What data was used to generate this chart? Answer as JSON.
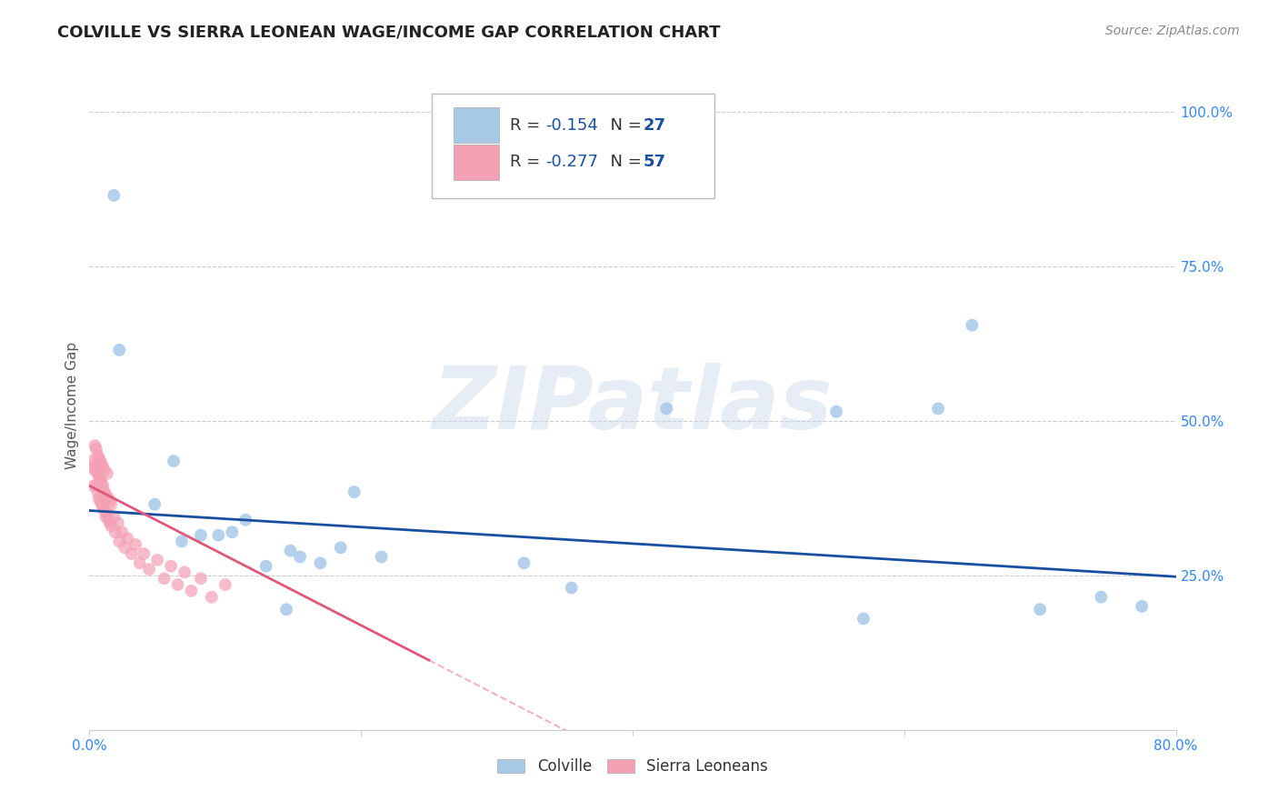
{
  "title": "COLVILLE VS SIERRA LEONEAN WAGE/INCOME GAP CORRELATION CHART",
  "source": "Source: ZipAtlas.com",
  "ylabel": "Wage/Income Gap",
  "xmin": 0.0,
  "xmax": 0.8,
  "ymin": 0.0,
  "ymax": 1.05,
  "yticks": [
    0.0,
    0.25,
    0.5,
    0.75,
    1.0
  ],
  "ytick_labels": [
    "",
    "25.0%",
    "50.0%",
    "75.0%",
    "100.0%"
  ],
  "xticks": [
    0.0,
    0.2,
    0.4,
    0.6,
    0.8
  ],
  "xtick_labels": [
    "0.0%",
    "",
    "",
    "",
    "80.0%"
  ],
  "colville_R": -0.154,
  "colville_N": 27,
  "sl_R": -0.277,
  "sl_N": 57,
  "colville_color": "#a8c8e8",
  "sl_color": "#f4a0b5",
  "colville_line_color": "#1a4fa0",
  "sl_line_color": "#e05878",
  "background_color": "#ffffff",
  "grid_color": "#cccccc",
  "colville_x": [
    0.018,
    0.022,
    0.048,
    0.062,
    0.068,
    0.082,
    0.095,
    0.105,
    0.115,
    0.13,
    0.145,
    0.148,
    0.155,
    0.17,
    0.185,
    0.195,
    0.215,
    0.32,
    0.355,
    0.425,
    0.55,
    0.57,
    0.625,
    0.65,
    0.7,
    0.745,
    0.775
  ],
  "colville_y": [
    0.865,
    0.615,
    0.365,
    0.435,
    0.305,
    0.315,
    0.315,
    0.32,
    0.34,
    0.265,
    0.195,
    0.29,
    0.28,
    0.27,
    0.295,
    0.385,
    0.28,
    0.27,
    0.23,
    0.52,
    0.515,
    0.18,
    0.52,
    0.655,
    0.195,
    0.215,
    0.2
  ],
  "sl_x": [
    0.002,
    0.003,
    0.003,
    0.004,
    0.004,
    0.005,
    0.005,
    0.005,
    0.006,
    0.006,
    0.006,
    0.007,
    0.007,
    0.007,
    0.008,
    0.008,
    0.008,
    0.009,
    0.009,
    0.009,
    0.01,
    0.01,
    0.01,
    0.011,
    0.011,
    0.011,
    0.012,
    0.012,
    0.013,
    0.013,
    0.014,
    0.014,
    0.015,
    0.015,
    0.016,
    0.016,
    0.018,
    0.019,
    0.021,
    0.022,
    0.024,
    0.026,
    0.028,
    0.031,
    0.034,
    0.037,
    0.04,
    0.044,
    0.05,
    0.055,
    0.06,
    0.065,
    0.07,
    0.075,
    0.082,
    0.09,
    0.1
  ],
  "sl_y": [
    0.435,
    0.425,
    0.395,
    0.46,
    0.42,
    0.455,
    0.43,
    0.395,
    0.445,
    0.415,
    0.385,
    0.44,
    0.41,
    0.375,
    0.435,
    0.405,
    0.37,
    0.43,
    0.4,
    0.365,
    0.425,
    0.395,
    0.36,
    0.385,
    0.42,
    0.355,
    0.38,
    0.345,
    0.415,
    0.35,
    0.375,
    0.34,
    0.37,
    0.335,
    0.365,
    0.33,
    0.345,
    0.32,
    0.335,
    0.305,
    0.32,
    0.295,
    0.31,
    0.285,
    0.3,
    0.27,
    0.285,
    0.26,
    0.275,
    0.245,
    0.265,
    0.235,
    0.255,
    0.225,
    0.245,
    0.215,
    0.235
  ],
  "watermark": "ZIPatlas",
  "title_fontsize": 13,
  "axis_label_fontsize": 11,
  "tick_fontsize": 11,
  "legend_fontsize": 13,
  "source_fontsize": 10,
  "marker_size": 100
}
